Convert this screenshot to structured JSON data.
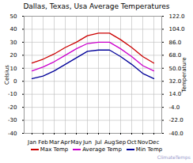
{
  "chart_data": {
    "type": "line",
    "title": "Dallas, Texas, Usa Average Temperatures",
    "categories": [
      "Jan",
      "Feb",
      "Mar",
      "Apr",
      "May",
      "Jun",
      "Jul",
      "Aug",
      "Sep",
      "Oct",
      "Nov",
      "Dec"
    ],
    "series": [
      {
        "name": "Max Temp",
        "color": "#cc0000",
        "values": [
          14,
          17,
          21,
          26,
          30,
          35,
          37,
          37,
          32,
          26,
          19,
          14
        ]
      },
      {
        "name": "Average Temp",
        "color": "#cc00cc",
        "values": [
          8,
          11,
          15,
          20,
          25,
          29,
          30,
          30,
          25,
          19,
          12,
          8
        ]
      },
      {
        "name": "Min Temp",
        "color": "#000099",
        "values": [
          2,
          4,
          8,
          13,
          18,
          23,
          24,
          24,
          19,
          13,
          6,
          2
        ]
      }
    ],
    "ylabel": "Celsius",
    "ylim": [
      -40,
      50
    ],
    "yticks": [
      50,
      40,
      30,
      20,
      10,
      0,
      -10,
      -20,
      -30,
      -40
    ],
    "y2label": "Temperature",
    "y2lim": [
      -40,
      122
    ],
    "y2ticks": [
      {
        "value": 122,
        "label": "122.0"
      },
      {
        "value": 104,
        "label": "104.0"
      },
      {
        "value": 86,
        "label": "86.0"
      },
      {
        "value": 68,
        "label": "68.0"
      },
      {
        "value": 50,
        "label": "50.0"
      },
      {
        "value": 32,
        "label": "32.0"
      },
      {
        "value": 14,
        "label": "14.0"
      },
      {
        "value": -4,
        "label": "-4.0"
      },
      {
        "value": -22,
        "label": "-22.0"
      },
      {
        "value": -40,
        "label": "-40.0"
      }
    ],
    "annotations": [
      {
        "text": "ClimateTemps",
        "color": "#9999cc"
      }
    ],
    "grid": true,
    "legend": "bottom"
  }
}
